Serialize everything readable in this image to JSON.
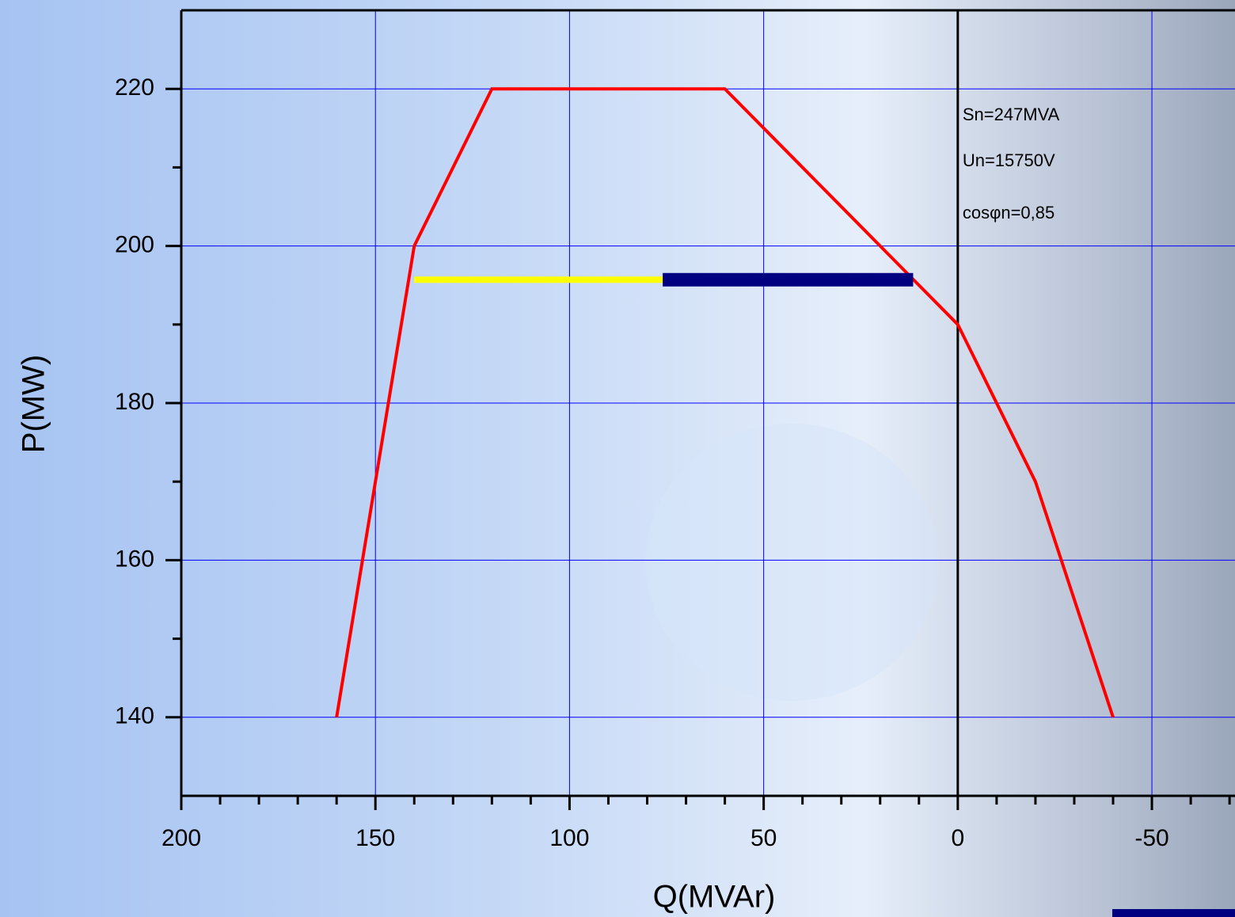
{
  "chart_data": {
    "type": "line",
    "xlabel": "Q(MVAr)",
    "ylabel": "P(MW)",
    "annotations": [
      "Sn=247MVA",
      "Un=15750V",
      "cosφn=0,85"
    ],
    "series": [
      {
        "color": "#ff0000",
        "x": [
          160,
          140,
          120,
          60,
          0,
          -20,
          -40
        ],
        "values": [
          140,
          200,
          220,
          220,
          190,
          170,
          140
        ]
      },
      {
        "color": "#ffff00",
        "x": [
          140,
          76
        ],
        "values": [
          195.7,
          195.7
        ]
      },
      {
        "color": "#000080",
        "x": [
          76,
          11.5
        ],
        "values": [
          195.7,
          195.7
        ]
      }
    ],
    "xlim": [
      200,
      -71.4
    ],
    "ylim": [
      130,
      230
    ],
    "xticks": [
      200,
      150,
      100,
      50,
      0,
      -50
    ],
    "yticks": [
      140,
      160,
      180,
      200,
      220
    ],
    "xminorticks": [
      190,
      180,
      170,
      160,
      140,
      130,
      120,
      110,
      90,
      80,
      70,
      60,
      40,
      30,
      20,
      10,
      -10,
      -20,
      -30,
      -40,
      -60,
      -70
    ],
    "yminorticks": [
      150,
      170,
      190,
      210
    ],
    "grid": true,
    "grid_color": "#0000ff",
    "zero_line": true
  }
}
